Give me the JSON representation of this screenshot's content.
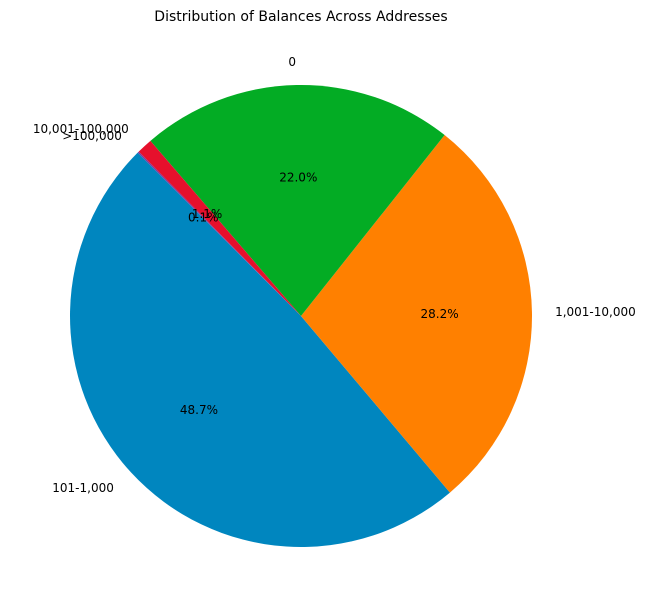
{
  "chart_data": {
    "type": "pie",
    "title": "Distribution of Balances Across Addresses",
    "start_angle_deg": 135,
    "direction": "counterclockwise",
    "slices": [
      {
        "label": "101-1,000",
        "value": 48.7,
        "pct_label": "48.7%",
        "color": "#0086bf"
      },
      {
        "label": "1,001-10,000",
        "value": 28.2,
        "pct_label": "28.2%",
        "color": "#ff8000"
      },
      {
        "label": "0",
        "value": 22.0,
        "pct_label": "22.0%",
        "color": "#03ac24"
      },
      {
        "label": "10,001-100,000",
        "value": 1.1,
        "pct_label": "1.1%",
        "color": "#e6102c"
      },
      {
        "label": ">100,000",
        "value": 0.1,
        "pct_label": "0.1%",
        "color": "#7b3ca0"
      }
    ]
  }
}
